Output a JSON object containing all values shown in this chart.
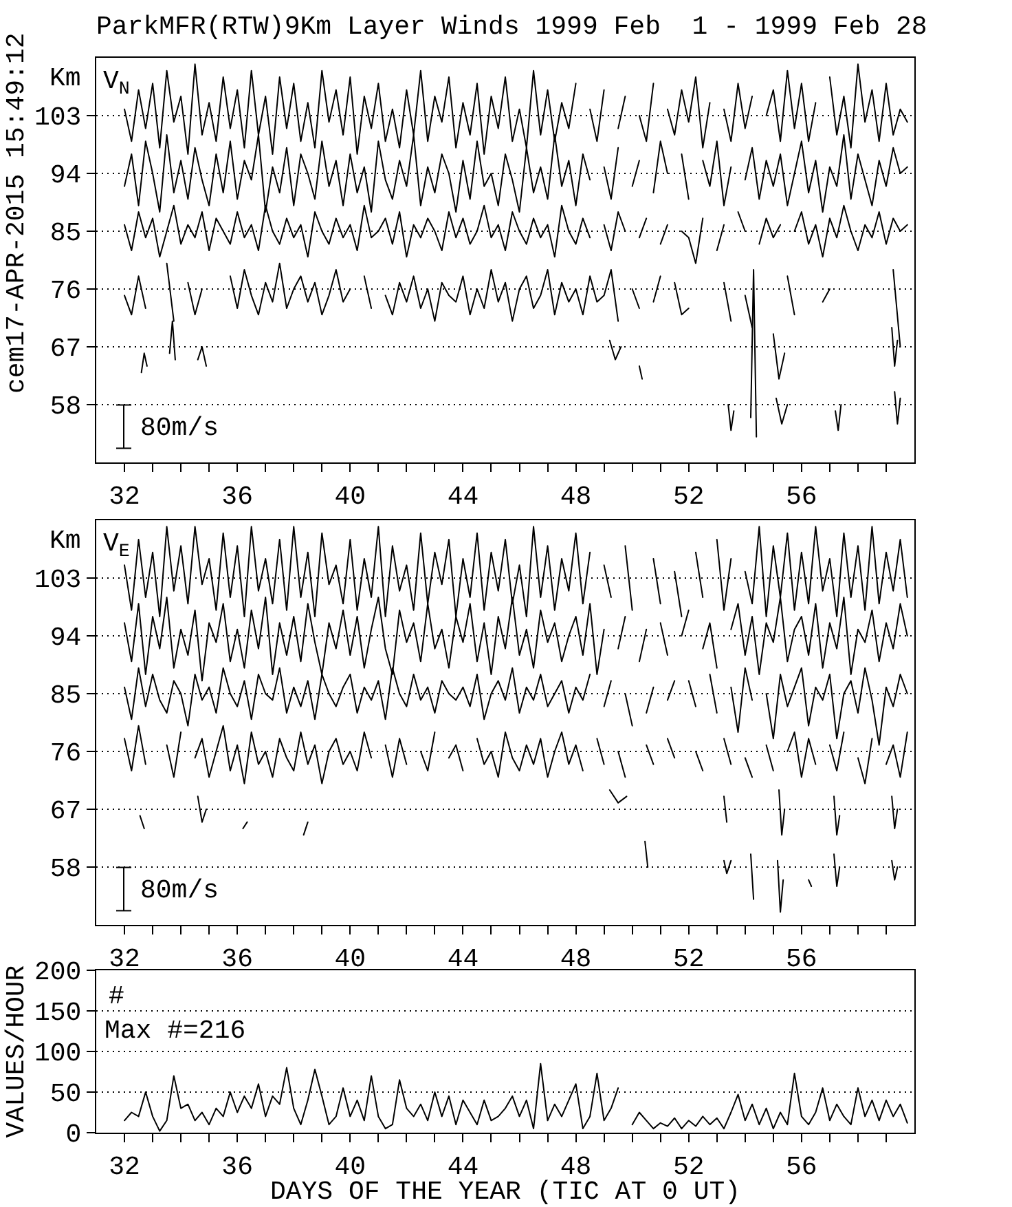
{
  "chart_data": [
    {
      "type": "line",
      "title": "ParkMFR(RTW)9Km Layer Winds 1999 Feb  1 - 1999 Feb 28",
      "ylabel": "Km",
      "annotations": [
        "V$_{N}$",
        "80m/s",
        "cem17-APR-2015 15:49:12"
      ],
      "x": [
        32,
        32.25,
        32.5,
        32.75,
        33,
        33.25,
        33.5,
        33.75,
        34,
        34.25,
        34.5,
        34.75,
        35,
        35.25,
        35.5,
        35.75,
        36,
        36.25,
        36.5,
        36.75,
        37,
        37.25,
        37.5,
        37.75,
        38,
        38.25,
        38.5,
        38.75,
        39,
        39.25,
        39.5,
        39.75,
        40,
        40.25,
        40.5,
        40.75,
        41,
        41.25,
        41.5,
        41.75,
        42,
        42.25,
        42.5,
        42.75,
        43,
        43.25,
        43.5,
        43.75,
        44,
        44.25,
        44.5,
        44.75,
        45,
        45.25,
        45.5,
        45.75,
        46,
        46.25,
        46.5,
        46.75,
        47,
        47.25,
        47.5,
        47.75,
        48,
        48.25,
        48.5,
        48.75,
        49,
        49.25,
        49.5,
        49.75,
        50,
        50.25,
        50.5,
        50.75,
        51,
        51.25,
        51.5,
        51.75,
        52,
        52.25,
        52.5,
        52.75,
        53,
        53.25,
        53.5,
        53.75,
        54,
        54.25,
        54.5,
        54.75,
        55,
        55.25,
        55.5,
        55.75,
        56,
        56.25,
        56.5,
        56.75,
        57,
        57.25,
        57.5,
        57.75,
        58,
        58.25,
        58.5,
        58.75,
        59,
        59.25,
        59.5,
        59.75
      ],
      "xlim": [
        31,
        60
      ],
      "xticks": [
        32,
        {
          "value": 33,
          "label": null
        },
        {
          "value": 34,
          "label": null
        },
        {
          "value": 35,
          "label": null
        },
        36,
        {
          "value": 37,
          "label": null
        },
        {
          "value": 38,
          "label": null
        },
        {
          "value": 39,
          "label": null
        },
        40,
        {
          "value": 41,
          "label": null
        },
        {
          "value": 42,
          "label": null
        },
        {
          "value": 43,
          "label": null
        },
        44,
        {
          "value": 45,
          "label": null
        },
        {
          "value": 46,
          "label": null
        },
        {
          "value": 47,
          "label": null
        },
        48,
        {
          "value": 49,
          "label": null
        },
        {
          "value": 50,
          "label": null
        },
        {
          "value": 51,
          "label": null
        },
        52,
        {
          "value": 53,
          "label": null
        },
        {
          "value": 54,
          "label": null
        },
        {
          "value": 55,
          "label": null
        },
        56,
        {
          "value": 57,
          "label": null
        },
        {
          "value": 58,
          "label": null
        },
        {
          "value": 59,
          "label": null
        }
      ],
      "ylim": [
        49,
        112
      ],
      "yticks": [
        58,
        67,
        76,
        85,
        94,
        103
      ],
      "grid": "y",
      "series": [
        {
          "color": "#000000",
          "values": [
            104,
            99,
            107,
            101,
            108,
            98,
            110,
            102,
            106,
            97,
            111,
            100,
            105,
            99,
            109,
            101,
            107,
            98,
            110,
            100,
            106,
            97,
            109,
            101,
            108,
            99,
            105,
            98,
            110,
            102,
            107,
            100,
            109,
            97,
            106,
            101,
            108,
            99,
            104,
            98,
            107,
            100,
            110,
            99,
            106,
            102,
            109,
            98,
            105,
            100,
            108,
            97,
            106,
            101,
            109,
            99,
            104,
            98,
            110,
            100,
            107,
            99,
            105,
            101,
            108,
            null,
            104,
            99,
            107,
            null,
            101,
            106,
            null,
            103,
            99,
            108,
            null,
            104,
            100,
            107,
            102,
            109,
            98,
            105,
            null,
            104,
            99,
            108,
            101,
            106,
            null,
            103,
            107,
            99,
            110,
            101,
            108,
            99,
            105,
            null,
            109,
            100,
            106,
            98,
            111,
            102,
            107,
            99,
            108,
            100,
            104,
            102
          ]
        },
        {
          "color": "#000000",
          "values": [
            92,
            97,
            89,
            99,
            94,
            88,
            100,
            91,
            96,
            90,
            98,
            93,
            89,
            97,
            91,
            99,
            90,
            96,
            93,
            100,
            88,
            95,
            91,
            98,
            89,
            97,
            94,
            90,
            99,
            92,
            96,
            89,
            97,
            91,
            95,
            88,
            99,
            93,
            90,
            96,
            92,
            100,
            89,
            95,
            91,
            97,
            94,
            88,
            96,
            90,
            99,
            92,
            94,
            89,
            97,
            93,
            88,
            98,
            91,
            95,
            90,
            100,
            92,
            96,
            89,
            97,
            93,
            null,
            95,
            90,
            98,
            null,
            92,
            96,
            null,
            91,
            99,
            94,
            null,
            97,
            90,
            null,
            96,
            92,
            99,
            89,
            95,
            null,
            93,
            98,
            90,
            96,
            92,
            97,
            89,
            94,
            99,
            91,
            96,
            88,
            95,
            92,
            100,
            90,
            97,
            93,
            89,
            96,
            92,
            98,
            94,
            95
          ]
        },
        {
          "color": "#000000",
          "values": [
            86,
            82,
            88,
            84,
            87,
            81,
            85,
            89,
            83,
            86,
            84,
            88,
            82,
            87,
            85,
            83,
            88,
            84,
            86,
            82,
            89,
            85,
            83,
            87,
            84,
            86,
            81,
            88,
            85,
            83,
            87,
            84,
            86,
            82,
            89,
            84,
            85,
            87,
            83,
            88,
            81,
            86,
            84,
            87,
            85,
            82,
            88,
            84,
            87,
            83,
            85,
            89,
            84,
            86,
            82,
            88,
            85,
            83,
            87,
            84,
            86,
            81,
            89,
            85,
            83,
            87,
            84,
            null,
            86,
            82,
            88,
            85,
            null,
            84,
            87,
            null,
            83,
            86,
            null,
            85,
            84,
            80,
            87,
            null,
            82,
            86,
            null,
            88,
            85,
            null,
            83,
            87,
            84,
            86,
            null,
            85,
            88,
            83,
            86,
            81,
            87,
            84,
            89,
            85,
            82,
            86,
            84,
            88,
            83,
            87,
            85,
            86
          ]
        },
        {
          "color": "#000000",
          "values": [
            75,
            72,
            78,
            73,
            null,
            null,
            80,
            71,
            null,
            77,
            72,
            76,
            null,
            null,
            null,
            78,
            73,
            79,
            75,
            72,
            77,
            74,
            80,
            73,
            76,
            78,
            74,
            77,
            72,
            75,
            79,
            74,
            76,
            null,
            78,
            73,
            null,
            75,
            72,
            77,
            74,
            78,
            73,
            76,
            71,
            77,
            75,
            74,
            78,
            72,
            76,
            73,
            79,
            74,
            77,
            71,
            76,
            78,
            73,
            75,
            79,
            72,
            77,
            74,
            76,
            72,
            78,
            74,
            75,
            79,
            71,
            null,
            76,
            73,
            null,
            74,
            78,
            null,
            77,
            72,
            73,
            null,
            null,
            null,
            null,
            77,
            71,
            null,
            75,
            70,
            null,
            null,
            null,
            null,
            78,
            72,
            null,
            null,
            null,
            74,
            76,
            null,
            null,
            null,
            null,
            null,
            null,
            null,
            null,
            79,
            67,
            null
          ]
        },
        {
          "color": "#000000",
          "x": [
            32.6,
            32.7,
            32.8,
            33.2,
            33.6,
            33.7,
            33.8,
            34.2,
            34.6,
            34.75,
            34.9,
            42,
            49.2,
            49.4,
            49.6,
            49.9,
            50.25,
            50.35,
            52,
            55.0,
            55.2,
            55.4,
            57,
            59.2,
            59.3,
            59.4
          ],
          "values": [
            63,
            66,
            64,
            null,
            66,
            71,
            65,
            null,
            65,
            67,
            64,
            null,
            68,
            65,
            67,
            null,
            64,
            62,
            null,
            69,
            62,
            66,
            null,
            70,
            64,
            68
          ]
        },
        {
          "color": "#000000",
          "x": [
            53.4,
            53.5,
            53.6,
            54.0,
            54.2,
            54.3,
            54.4,
            54.8,
            55.1,
            55.3,
            55.5,
            56.5,
            57.2,
            57.3,
            57.4,
            58.5,
            59.3,
            59.4,
            59.5
          ],
          "values": [
            58,
            54,
            57,
            null,
            56,
            79,
            53,
            null,
            59,
            55,
            58,
            null,
            57,
            54,
            58,
            null,
            60,
            55,
            59
          ]
        }
      ]
    },
    {
      "type": "line",
      "ylabel": "Km",
      "annotations": [
        "V$_{E}$",
        "80m/s"
      ],
      "x": [
        32,
        32.25,
        32.5,
        32.75,
        33,
        33.25,
        33.5,
        33.75,
        34,
        34.25,
        34.5,
        34.75,
        35,
        35.25,
        35.5,
        35.75,
        36,
        36.25,
        36.5,
        36.75,
        37,
        37.25,
        37.5,
        37.75,
        38,
        38.25,
        38.5,
        38.75,
        39,
        39.25,
        39.5,
        39.75,
        40,
        40.25,
        40.5,
        40.75,
        41,
        41.25,
        41.5,
        41.75,
        42,
        42.25,
        42.5,
        42.75,
        43,
        43.25,
        43.5,
        43.75,
        44,
        44.25,
        44.5,
        44.75,
        45,
        45.25,
        45.5,
        45.75,
        46,
        46.25,
        46.5,
        46.75,
        47,
        47.25,
        47.5,
        47.75,
        48,
        48.25,
        48.5,
        48.75,
        49,
        49.25,
        49.5,
        49.75,
        50,
        50.25,
        50.5,
        50.75,
        51,
        51.25,
        51.5,
        51.75,
        52,
        52.25,
        52.5,
        52.75,
        53,
        53.25,
        53.5,
        53.75,
        54,
        54.25,
        54.5,
        54.75,
        55,
        55.25,
        55.5,
        55.75,
        56,
        56.25,
        56.5,
        56.75,
        57,
        57.25,
        57.5,
        57.75,
        58,
        58.25,
        58.5,
        58.75,
        59,
        59.25,
        59.5,
        59.75
      ],
      "xlim": [
        31,
        60
      ],
      "xticks": [
        32,
        {
          "value": 33,
          "label": null
        },
        {
          "value": 34,
          "label": null
        },
        {
          "value": 35,
          "label": null
        },
        36,
        {
          "value": 37,
          "label": null
        },
        {
          "value": 38,
          "label": null
        },
        {
          "value": 39,
          "label": null
        },
        40,
        {
          "value": 41,
          "label": null
        },
        {
          "value": 42,
          "label": null
        },
        {
          "value": 43,
          "label": null
        },
        44,
        {
          "value": 45,
          "label": null
        },
        {
          "value": 46,
          "label": null
        },
        {
          "value": 47,
          "label": null
        },
        48,
        {
          "value": 49,
          "label": null
        },
        {
          "value": 50,
          "label": null
        },
        {
          "value": 51,
          "label": null
        },
        52,
        {
          "value": 53,
          "label": null
        },
        {
          "value": 54,
          "label": null
        },
        {
          "value": 55,
          "label": null
        },
        56,
        {
          "value": 57,
          "label": null
        },
        {
          "value": 58,
          "label": null
        },
        {
          "value": 59,
          "label": null
        }
      ],
      "ylim": [
        49,
        112
      ],
      "yticks": [
        58,
        67,
        76,
        85,
        94,
        103
      ],
      "grid": "y",
      "series": [
        {
          "color": "#000000",
          "values": [
            105,
            98,
            109,
            100,
            107,
            97,
            111,
            101,
            108,
            99,
            111,
            102,
            106,
            98,
            110,
            100,
            108,
            97,
            111,
            101,
            106,
            99,
            109,
            98,
            111,
            100,
            107,
            97,
            110,
            102,
            105,
            99,
            109,
            98,
            106,
            100,
            111,
            97,
            108,
            101,
            105,
            98,
            110,
            99,
            107,
            102,
            109,
            97,
            106,
            100,
            110,
            98,
            107,
            101,
            109,
            99,
            105,
            97,
            111,
            100,
            108,
            98,
            106,
            101,
            110,
            99,
            107,
            null,
            105,
            100,
            null,
            108,
            98,
            null,
            null,
            106,
            99,
            null,
            104,
            97,
            null,
            107,
            100,
            null,
            109,
            98,
            106,
            null,
            104,
            99,
            111,
            97,
            108,
            100,
            110,
            98,
            107,
            99,
            111,
            101,
            106,
            97,
            110,
            100,
            108,
            98,
            111,
            99,
            107,
            101,
            109,
            100
          ]
        },
        {
          "color": "#000000",
          "values": [
            96,
            90,
            99,
            88,
            97,
            92,
            100,
            89,
            95,
            91,
            98,
            87,
            96,
            93,
            99,
            90,
            95,
            89,
            98,
            92,
            100,
            88,
            96,
            91,
            97,
            90,
            99,
            93,
            88,
            96,
            92,
            98,
            91,
            97,
            89,
            95,
            100,
            92,
            88,
            98,
            93,
            96,
            90,
            99,
            92,
            95,
            89,
            97,
            93,
            99,
            90,
            96,
            88,
            97,
            92,
            100,
            91,
            95,
            89,
            98,
            93,
            96,
            90,
            94,
            97,
            91,
            99,
            88,
            95,
            null,
            92,
            97,
            null,
            90,
            95,
            null,
            96,
            91,
            null,
            94,
            98,
            null,
            92,
            96,
            89,
            null,
            95,
            99,
            91,
            97,
            88,
            96,
            93,
            100,
            90,
            95,
            97,
            91,
            99,
            89,
            96,
            92,
            100,
            88,
            95,
            93,
            98,
            90,
            96,
            92,
            99,
            94
          ]
        },
        {
          "color": "#000000",
          "values": [
            86,
            81,
            89,
            83,
            88,
            84,
            82,
            87,
            85,
            80,
            88,
            84,
            86,
            82,
            89,
            85,
            83,
            87,
            81,
            88,
            85,
            84,
            89,
            82,
            86,
            83,
            87,
            81,
            88,
            85,
            83,
            86,
            88,
            82,
            86,
            84,
            87,
            81,
            89,
            85,
            83,
            88,
            84,
            86,
            82,
            87,
            85,
            84,
            86,
            83,
            88,
            81,
            85,
            87,
            84,
            89,
            82,
            86,
            84,
            88,
            83,
            85,
            87,
            82,
            86,
            84,
            88,
            null,
            83,
            87,
            null,
            85,
            80,
            null,
            82,
            86,
            null,
            84,
            87,
            null,
            87,
            83,
            null,
            88,
            82,
            null,
            86,
            79,
            89,
            84,
            null,
            85,
            78,
            88,
            83,
            86,
            89,
            80,
            86,
            84,
            88,
            78,
            85,
            87,
            82,
            89,
            84,
            77,
            86,
            83,
            88,
            85
          ]
        },
        {
          "color": "#000000",
          "values": [
            78,
            73,
            80,
            74,
            null,
            null,
            77,
            72,
            79,
            null,
            75,
            78,
            72,
            76,
            80,
            73,
            77,
            71,
            79,
            74,
            76,
            72,
            78,
            75,
            73,
            79,
            74,
            77,
            71,
            76,
            78,
            74,
            76,
            73,
            79,
            75,
            null,
            77,
            72,
            78,
            74,
            null,
            76,
            73,
            79,
            null,
            75,
            77,
            73,
            null,
            78,
            74,
            76,
            72,
            79,
            75,
            73,
            77,
            74,
            78,
            72,
            76,
            79,
            74,
            77,
            73,
            null,
            78,
            74,
            null,
            76,
            72,
            null,
            null,
            77,
            74,
            null,
            78,
            75,
            null,
            null,
            76,
            73,
            null,
            null,
            78,
            74,
            null,
            75,
            72,
            null,
            77,
            73,
            null,
            76,
            79,
            72,
            78,
            74,
            null,
            77,
            73,
            79,
            null,
            75,
            71,
            78,
            null,
            74,
            77,
            72,
            79
          ]
        },
        {
          "color": "#000000",
          "x": [
            32.55,
            32.7,
            33,
            34.6,
            34.75,
            34.9,
            35.5,
            36.2,
            36.35,
            37,
            38.35,
            38.5,
            40,
            49.2,
            49.5,
            49.8,
            51,
            53.25,
            53.35,
            54,
            55.2,
            55.3,
            55.4,
            56,
            57.15,
            57.25,
            57.35,
            58,
            59.2,
            59.3,
            59.4
          ],
          "values": [
            66,
            64,
            null,
            69,
            65,
            67,
            null,
            64,
            65,
            null,
            63,
            65,
            null,
            70,
            68,
            69,
            null,
            69,
            65,
            null,
            70,
            63,
            67,
            null,
            69,
            63,
            66,
            null,
            69,
            64,
            67
          ]
        },
        {
          "color": "#000000",
          "x": [
            50.45,
            50.55,
            51,
            53.25,
            53.35,
            53.5,
            53.8,
            54.2,
            54.3,
            54.8,
            55.15,
            55.25,
            55.35,
            55.8,
            56.25,
            56.35,
            56.8,
            57.15,
            57.25,
            57.35,
            58,
            59.2,
            59.3,
            59.4
          ],
          "values": [
            62,
            58,
            null,
            59,
            57,
            59,
            null,
            60,
            53,
            null,
            59,
            51,
            56,
            null,
            56,
            55,
            null,
            60,
            55,
            58,
            null,
            59,
            56,
            58
          ]
        }
      ]
    },
    {
      "type": "line",
      "xlabel": "DAYS OF THE YEAR (TIC AT 0 UT)",
      "ylabel": "VALUES/HOUR",
      "annotations": [
        "#",
        "Max #=216"
      ],
      "x": [
        32,
        32.25,
        32.5,
        32.75,
        33,
        33.25,
        33.5,
        33.75,
        34,
        34.25,
        34.5,
        34.75,
        35,
        35.25,
        35.5,
        35.75,
        36,
        36.25,
        36.5,
        36.75,
        37,
        37.25,
        37.5,
        37.75,
        38,
        38.25,
        38.5,
        38.75,
        39,
        39.25,
        39.5,
        39.75,
        40,
        40.25,
        40.5,
        40.75,
        41,
        41.25,
        41.5,
        41.75,
        42,
        42.25,
        42.5,
        42.75,
        43,
        43.25,
        43.5,
        43.75,
        44,
        44.25,
        44.5,
        44.75,
        45,
        45.25,
        45.5,
        45.75,
        46,
        46.25,
        46.5,
        46.75,
        47,
        47.25,
        47.5,
        47.75,
        48,
        48.25,
        48.5,
        48.75,
        49,
        49.25,
        49.5,
        49.75,
        50,
        50.25,
        50.5,
        50.75,
        51,
        51.25,
        51.5,
        51.75,
        52,
        52.25,
        52.5,
        52.75,
        53,
        53.25,
        53.5,
        53.75,
        54,
        54.25,
        54.5,
        54.75,
        55,
        55.25,
        55.5,
        55.75,
        56,
        56.25,
        56.5,
        56.75,
        57,
        57.25,
        57.5,
        57.75,
        58,
        58.25,
        58.5,
        58.75,
        59,
        59.25,
        59.5,
        59.75
      ],
      "xlim": [
        31,
        60
      ],
      "xticks": [
        32,
        {
          "value": 33,
          "label": null
        },
        {
          "value": 34,
          "label": null
        },
        {
          "value": 35,
          "label": null
        },
        36,
        {
          "value": 37,
          "label": null
        },
        {
          "value": 38,
          "label": null
        },
        {
          "value": 39,
          "label": null
        },
        40,
        {
          "value": 41,
          "label": null
        },
        {
          "value": 42,
          "label": null
        },
        {
          "value": 43,
          "label": null
        },
        44,
        {
          "value": 45,
          "label": null
        },
        {
          "value": 46,
          "label": null
        },
        {
          "value": 47,
          "label": null
        },
        48,
        {
          "value": 49,
          "label": null
        },
        {
          "value": 50,
          "label": null
        },
        {
          "value": 51,
          "label": null
        },
        52,
        {
          "value": 53,
          "label": null
        },
        {
          "value": 54,
          "label": null
        },
        {
          "value": 55,
          "label": null
        },
        56,
        {
          "value": 57,
          "label": null
        },
        {
          "value": 58,
          "label": null
        },
        {
          "value": 59,
          "label": null
        }
      ],
      "ylim": [
        0,
        200
      ],
      "yticks": [
        0,
        50,
        100,
        150,
        200
      ],
      "grid": "y",
      "color": "#000000",
      "values": [
        15,
        25,
        20,
        50,
        20,
        2,
        15,
        70,
        30,
        35,
        15,
        25,
        10,
        30,
        20,
        50,
        25,
        45,
        30,
        60,
        20,
        45,
        35,
        80,
        30,
        10,
        40,
        78,
        45,
        10,
        20,
        55,
        20,
        40,
        15,
        70,
        20,
        5,
        10,
        65,
        30,
        20,
        35,
        15,
        50,
        20,
        45,
        10,
        40,
        25,
        10,
        40,
        15,
        20,
        30,
        45,
        20,
        40,
        5,
        85,
        15,
        35,
        20,
        40,
        60,
        5,
        20,
        73,
        15,
        30,
        55,
        null,
        10,
        25,
        15,
        5,
        12,
        8,
        18,
        5,
        15,
        8,
        20,
        10,
        18,
        5,
        25,
        47,
        15,
        35,
        10,
        30,
        5,
        25,
        10,
        73,
        20,
        10,
        25,
        55,
        15,
        35,
        20,
        10,
        55,
        20,
        40,
        15,
        40,
        20,
        35,
        12
      ]
    }
  ]
}
